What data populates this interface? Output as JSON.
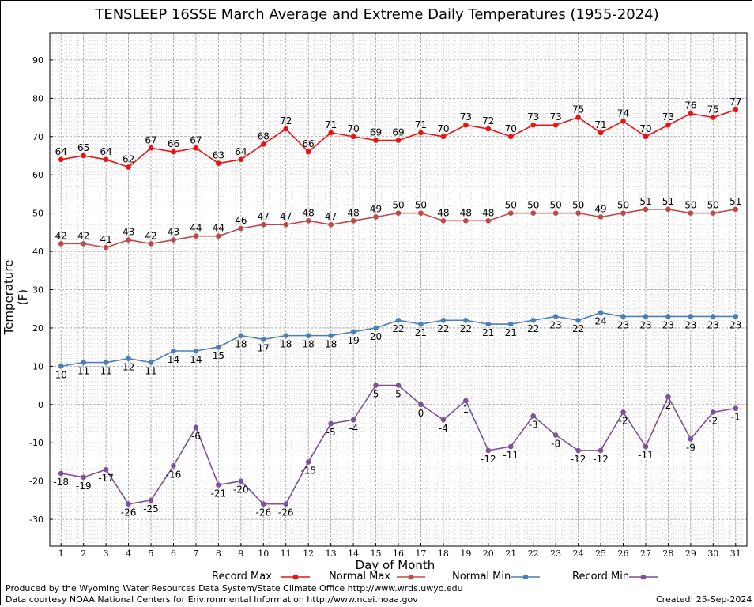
{
  "chart_data": {
    "type": "line",
    "title": "TENSLEEP 16SSE March Average and Extreme Daily Temperatures (1955-2024)",
    "xlabel": "Day of Month",
    "ylabel": "Temperature (F)",
    "ylim": [
      -37,
      97
    ],
    "yticks": [
      -30,
      -20,
      -10,
      0,
      10,
      20,
      30,
      40,
      50,
      60,
      70,
      80,
      90
    ],
    "x": [
      1,
      2,
      3,
      4,
      5,
      6,
      7,
      8,
      9,
      10,
      11,
      12,
      13,
      14,
      15,
      16,
      17,
      18,
      19,
      20,
      21,
      22,
      23,
      24,
      25,
      26,
      27,
      28,
      29,
      30,
      31
    ],
    "grid": true,
    "legend_position": "bottom",
    "series": [
      {
        "name": "Record Max",
        "color": "#ee1111",
        "label_position": "above",
        "values": [
          64,
          65,
          64,
          62,
          67,
          66,
          67,
          63,
          64,
          68,
          72,
          66,
          71,
          70,
          69,
          69,
          71,
          70,
          73,
          72,
          70,
          73,
          73,
          75,
          71,
          74,
          70,
          73,
          76,
          75,
          77
        ]
      },
      {
        "name": "Normal Max",
        "color": "#c04848",
        "label_position": "above",
        "values": [
          42,
          42,
          41,
          43,
          42,
          43,
          44,
          44,
          46,
          47,
          47,
          48,
          47,
          48,
          49,
          50,
          50,
          48,
          48,
          48,
          50,
          50,
          50,
          50,
          49,
          50,
          51,
          51,
          50,
          50,
          51
        ]
      },
      {
        "name": "Normal Min",
        "color": "#4a7fb8",
        "label_position": "below",
        "values": [
          10,
          11,
          11,
          12,
          11,
          14,
          14,
          15,
          18,
          17,
          18,
          18,
          18,
          19,
          20,
          22,
          21,
          22,
          22,
          21,
          21,
          22,
          23,
          22,
          24,
          23,
          23,
          23,
          23,
          23,
          23
        ]
      },
      {
        "name": "Record Min",
        "color": "#7e4f9a",
        "label_position": "below",
        "values": [
          -18,
          -19,
          -17,
          -26,
          -25,
          -16,
          -6,
          -21,
          -20,
          -26,
          -26,
          -15,
          -5,
          -4,
          5,
          5,
          0,
          -4,
          1,
          -12,
          -11,
          -3,
          -8,
          -12,
          -12,
          -2,
          -11,
          2,
          -9,
          -2,
          -1
        ]
      }
    ]
  },
  "footer": {
    "left_line1": "Produced by the Wyoming Water Resources Data System/State Climate Office http://www.wrds.uwyo.edu",
    "left_line2": "Data courtesy NOAA National Centers for Environmental Information http://www.ncei.noaa.gov",
    "created": "Created:  25-Sep-2024"
  }
}
